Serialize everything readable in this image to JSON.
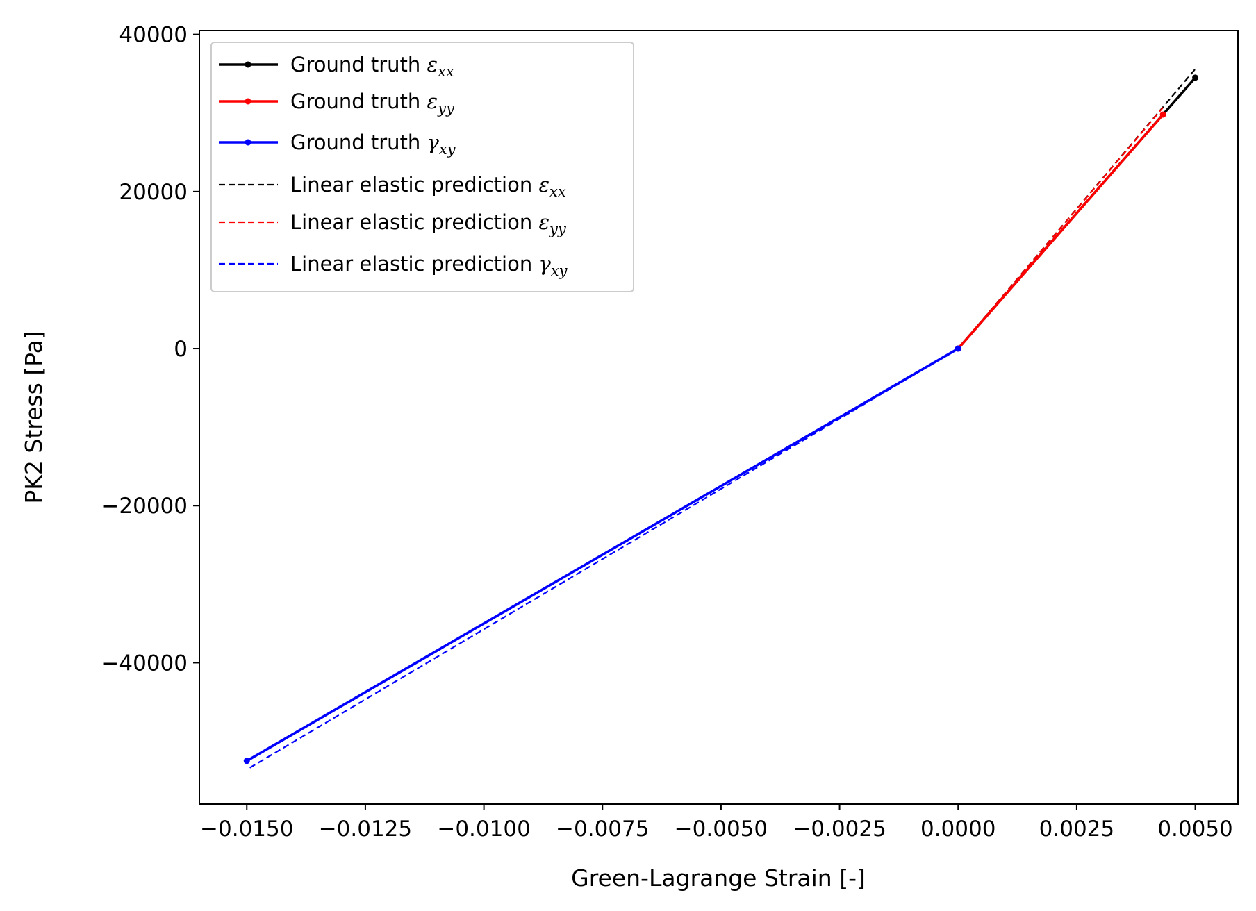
{
  "chart_data": {
    "type": "line",
    "xlabel": "Green-Lagrange Strain [-]",
    "ylabel": "PK2 Stress [Pa]",
    "xlim": [
      -0.016,
      0.0059
    ],
    "ylim": [
      -58000,
      40500
    ],
    "x_ticks": [
      -0.015,
      -0.0125,
      -0.01,
      -0.0075,
      -0.005,
      -0.0025,
      0.0,
      0.0025,
      0.005
    ],
    "x_tick_labels": [
      "−0.0150",
      "−0.0125",
      "−0.0100",
      "−0.0075",
      "−0.0050",
      "−0.0025",
      "0.0000",
      "0.0025",
      "0.0050"
    ],
    "y_ticks": [
      -40000,
      -20000,
      0,
      20000,
      40000
    ],
    "y_tick_labels": [
      "−40000",
      "−20000",
      "0",
      "20000",
      "40000"
    ],
    "grid": false,
    "legend_position": "top-left",
    "series": [
      {
        "name": "Ground truth",
        "sym": "ε",
        "sub": "xx",
        "color": "#000000",
        "style": "solid",
        "markers": true,
        "x": [
          0.0,
          0.005
        ],
        "y": [
          0,
          34500
        ]
      },
      {
        "name": "Ground truth",
        "sym": "ε",
        "sub": "yy",
        "color": "#ff0000",
        "style": "solid",
        "markers": true,
        "x": [
          0.0,
          0.00432
        ],
        "y": [
          0,
          29800
        ]
      },
      {
        "name": "Ground truth",
        "sym": "γ",
        "sub": "xy",
        "color": "#0000ff",
        "style": "solid",
        "markers": true,
        "x": [
          0.0,
          -0.015
        ],
        "y": [
          0,
          -52500
        ]
      },
      {
        "name": "Linear elastic prediction",
        "sym": "ε",
        "sub": "xx",
        "color": "#000000",
        "style": "dashed",
        "markers": false,
        "x": [
          0.0,
          0.005
        ],
        "y": [
          0,
          35600
        ]
      },
      {
        "name": "Linear elastic prediction",
        "sym": "ε",
        "sub": "yy",
        "color": "#ff0000",
        "style": "dashed",
        "markers": false,
        "x": [
          0.0,
          0.00432
        ],
        "y": [
          0,
          30700
        ]
      },
      {
        "name": "Linear elastic prediction",
        "sym": "γ",
        "sub": "xy",
        "color": "#0000ff",
        "style": "dashed",
        "markers": false,
        "x": [
          0.0,
          -0.015
        ],
        "y": [
          0,
          -53600
        ]
      }
    ]
  }
}
